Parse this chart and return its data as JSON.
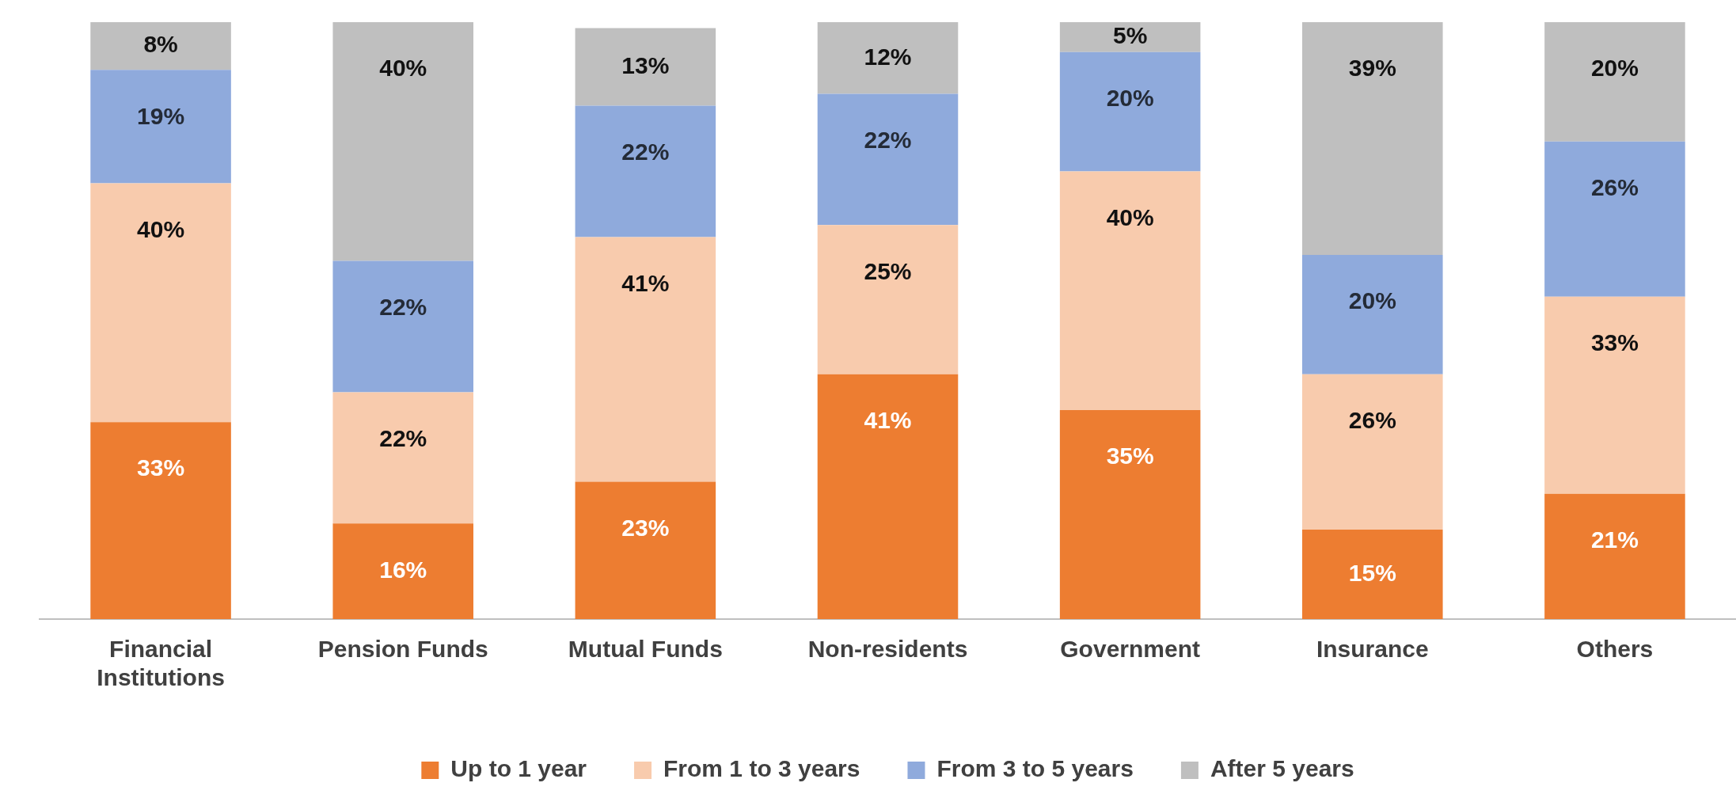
{
  "chart_data": {
    "type": "bar",
    "stacked": true,
    "categories": [
      "Financial Institutions",
      "Pension Funds",
      "Mutual Funds",
      "Non-residents",
      "Government",
      "Insurance",
      "Others"
    ],
    "series": [
      {
        "name": "Up to 1 year",
        "color": "#ed7d31",
        "values": [
          33,
          16,
          23,
          41,
          35,
          15,
          21
        ],
        "value_labels": [
          "33%",
          "16%",
          "23%",
          "41%",
          "35%",
          "15%",
          "21%"
        ]
      },
      {
        "name": "From 1 to 3 years",
        "color": "#f8cbad",
        "values": [
          40,
          22,
          41,
          25,
          40,
          26,
          33
        ],
        "value_labels": [
          "40%",
          "22%",
          "41%",
          "25%",
          "40%",
          "26%",
          "33%"
        ]
      },
      {
        "name": "From 3 to 5 years",
        "color": "#8faadc",
        "values": [
          19,
          22,
          22,
          22,
          20,
          20,
          26
        ],
        "value_labels": [
          "19%",
          "22%",
          "22%",
          "22%",
          "20%",
          "20%",
          "26%"
        ]
      },
      {
        "name": "After 5 years",
        "color": "#bfbfbf",
        "values": [
          8,
          40,
          13,
          12,
          5,
          39,
          20
        ],
        "value_labels": [
          "8%",
          "40%",
          "13%",
          "12%",
          "5%",
          "39%",
          "20%"
        ]
      }
    ],
    "ylim": [
      0,
      100
    ],
    "tick_labels": "x",
    "grid": false,
    "legend": "bottom"
  }
}
